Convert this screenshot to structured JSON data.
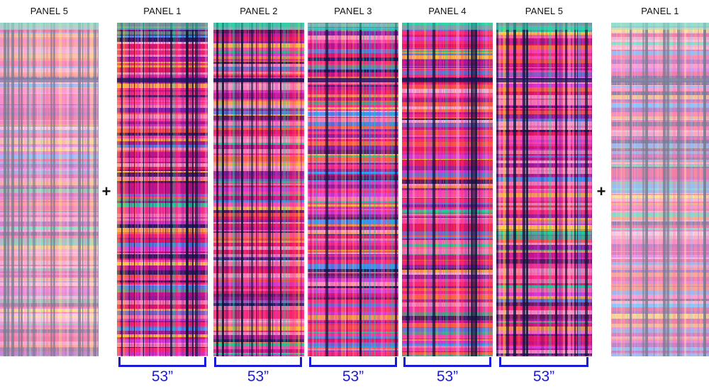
{
  "panels": [
    {
      "id": "left-faded",
      "label": "PANEL 5",
      "faded": true,
      "dark": true
    },
    {
      "id": "p1",
      "label": "PANEL 1",
      "faded": false,
      "dark": true
    },
    {
      "id": "p2",
      "label": "PANEL 2",
      "faded": false,
      "dark": true
    },
    {
      "id": "p3",
      "label": "PANEL 3",
      "faded": false,
      "dark": false
    },
    {
      "id": "p4",
      "label": "PANEL 4",
      "faded": false,
      "dark": false
    },
    {
      "id": "p5",
      "label": "PANEL 5",
      "faded": false,
      "dark": true
    },
    {
      "id": "right-faded",
      "label": "PANEL 1",
      "faded": true,
      "dark": false
    }
  ],
  "plus_sign": "+",
  "width_label": "53”",
  "colors": {
    "bracket": "#1a1ad6",
    "stripe_palette": [
      "#e6175f",
      "#ff2e7a",
      "#c0128f",
      "#ff4fb3",
      "#f7b0d8",
      "#ff6a3d",
      "#ffd23f",
      "#18d49a",
      "#2e9bff",
      "#1b1b5e",
      "#7a1fa8",
      "#d63bdc",
      "#ff9ac2"
    ]
  }
}
